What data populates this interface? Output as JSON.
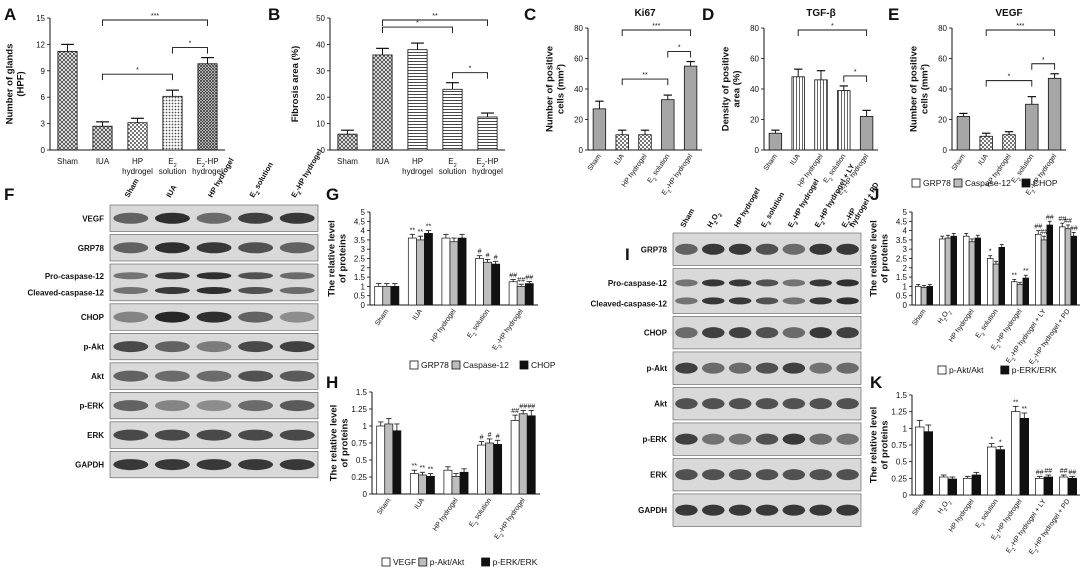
{
  "chart_data": [
    {
      "id": "A",
      "panel": "A",
      "type": "bar",
      "categories": [
        [
          "Sham"
        ],
        [
          "IUA"
        ],
        [
          "HP",
          "hydrogel"
        ],
        [
          "E₂",
          "solution"
        ],
        [
          "E₂-HP",
          "hydrogel"
        ]
      ],
      "values": [
        11.2,
        2.7,
        3.1,
        6.1,
        9.8
      ],
      "errors": [
        0.8,
        0.5,
        0.5,
        0.7,
        0.7
      ],
      "fills": [
        "cross",
        "cross",
        "check",
        "dots",
        "cross2"
      ],
      "ylabel": [
        "Number of glands",
        "(HPF)"
      ],
      "ylim": [
        0,
        15
      ],
      "yticks": [
        0,
        3,
        6,
        9,
        12,
        15
      ],
      "significance": [
        {
          "from": 1,
          "to": 4,
          "label": "***"
        },
        {
          "from": 1,
          "to": 3,
          "label": "*"
        },
        {
          "from": 3,
          "to": 4,
          "label": "*"
        }
      ]
    },
    {
      "id": "B",
      "panel": "B",
      "type": "bar",
      "categories": [
        [
          "Sham"
        ],
        [
          "IUA"
        ],
        [
          "HP",
          "hydrogel"
        ],
        [
          "E₂",
          "solution"
        ],
        [
          "E₂-HP",
          "hydrogel"
        ]
      ],
      "values": [
        6,
        36,
        38,
        23,
        12.5
      ],
      "errors": [
        1.5,
        2.5,
        2.5,
        2.5,
        1.5
      ],
      "fills": [
        "cross",
        "cross",
        "hlines",
        "hlines",
        "hlines"
      ],
      "ylabel": [
        "Fibrosis area (%)"
      ],
      "ylim": [
        0,
        50
      ],
      "yticks": [
        0,
        10,
        20,
        30,
        40,
        50
      ],
      "significance": [
        {
          "from": 1,
          "to": 4,
          "label": "**"
        },
        {
          "from": 1,
          "to": 3,
          "label": "*"
        },
        {
          "from": 3,
          "to": 4,
          "label": "*"
        }
      ]
    },
    {
      "id": "C",
      "panel": "C",
      "type": "bar",
      "title": "Ki67",
      "categories": [
        "Sham",
        "IUA",
        "HP hydrogel",
        "E₂ solution",
        "E₂-HP hydrogel"
      ],
      "values": [
        27,
        10,
        10,
        33,
        55
      ],
      "errors": [
        5,
        3,
        3,
        3,
        3
      ],
      "fills": [
        "solid",
        "check",
        "check",
        "solid",
        "solid"
      ],
      "ylabel": [
        "Number of positive",
        "cells (mm²)"
      ],
      "ylim": [
        0,
        80
      ],
      "yticks": [
        0,
        20,
        40,
        60,
        80
      ],
      "significance": [
        {
          "from": 1,
          "to": 4,
          "label": "***"
        },
        {
          "from": 1,
          "to": 3,
          "label": "**"
        },
        {
          "from": 3,
          "to": 4,
          "label": "*"
        }
      ]
    },
    {
      "id": "D",
      "panel": "D",
      "type": "bar",
      "title": "TGF-β",
      "categories": [
        "Sham",
        "IUA",
        "HP hydrogel",
        "E₂ solution",
        "E₂-HP hydrogel"
      ],
      "values": [
        11,
        48,
        46,
        39,
        22
      ],
      "errors": [
        2,
        5,
        6,
        3,
        4
      ],
      "fills": [
        "solid",
        "vlines",
        "vlines",
        "vlines",
        "solid"
      ],
      "ylabel": [
        "Density of positive",
        "area (%)"
      ],
      "ylim": [
        0,
        80
      ],
      "yticks": [
        0,
        20,
        40,
        60,
        80
      ],
      "significance": [
        {
          "from": 1,
          "to": 4,
          "label": "*"
        },
        {
          "from": 3,
          "to": 4,
          "label": "*"
        }
      ]
    },
    {
      "id": "E",
      "panel": "E",
      "type": "bar",
      "title": "VEGF",
      "categories": [
        "Sham",
        "IUA",
        "HP hydrogel",
        "E₂ solution",
        "E₂-HP hydrogel"
      ],
      "values": [
        22,
        9,
        10,
        30,
        47
      ],
      "errors": [
        2,
        2,
        2,
        5,
        3
      ],
      "fills": [
        "solid",
        "check",
        "check",
        "solid",
        "solid"
      ],
      "ylabel": [
        "Number of positive",
        "cells (mm²)"
      ],
      "ylim": [
        0,
        80
      ],
      "yticks": [
        0,
        20,
        40,
        60,
        80
      ],
      "significance": [
        {
          "from": 1,
          "to": 4,
          "label": "***"
        },
        {
          "from": 1,
          "to": 3,
          "label": "*"
        },
        {
          "from": 3,
          "to": 4,
          "label": "*"
        }
      ]
    },
    {
      "id": "G",
      "panel": "G",
      "type": "bar",
      "grouped": true,
      "categories": [
        "Sham",
        "IUA",
        "HP hydrogel",
        "E₂ solution",
        "E₂-HP hydrogel"
      ],
      "ylabel": [
        "The relative level",
        "of proteins"
      ],
      "ylim": [
        0,
        5
      ],
      "yticks": [
        0,
        0.5,
        1,
        1.5,
        2,
        2.5,
        3,
        3.5,
        4,
        4.5,
        5
      ],
      "series": [
        {
          "name": "GRP78",
          "fill": "#ffffff",
          "values": [
            1.0,
            3.6,
            3.6,
            2.5,
            1.25
          ],
          "errors": [
            0.15,
            0.2,
            0.2,
            0.15,
            0.12
          ],
          "marks": [
            "",
            "**",
            "",
            "#",
            "##"
          ]
        },
        {
          "name": "Caspase-12",
          "fill": "#bdbdbd",
          "values": [
            1.0,
            3.5,
            3.4,
            2.3,
            1.0
          ],
          "errors": [
            0.15,
            0.2,
            0.2,
            0.15,
            0.12
          ],
          "marks": [
            "",
            "**",
            "",
            "#",
            "##"
          ]
        },
        {
          "name": "CHOP",
          "fill": "#111111",
          "values": [
            1.0,
            3.85,
            3.6,
            2.2,
            1.15
          ],
          "errors": [
            0.15,
            0.15,
            0.2,
            0.15,
            0.12
          ],
          "marks": [
            "",
            "**",
            "",
            "#",
            "##"
          ]
        }
      ]
    },
    {
      "id": "H",
      "panel": "H",
      "type": "bar",
      "grouped": true,
      "categories": [
        "Sham",
        "IUA",
        "HP hydrogel",
        "E₂ solution",
        "E₂-HP hydrogel"
      ],
      "ylabel": [
        "The relative level",
        "of proteins"
      ],
      "ylim": [
        0,
        1.5
      ],
      "yticks": [
        0,
        0.25,
        0.5,
        0.75,
        1,
        1.25,
        1.5
      ],
      "series": [
        {
          "name": "VEGF",
          "fill": "#ffffff",
          "values": [
            1.0,
            0.3,
            0.35,
            0.72,
            1.08
          ],
          "errors": [
            0.06,
            0.05,
            0.05,
            0.05,
            0.08
          ],
          "marks": [
            "",
            "**",
            "",
            "#",
            "##"
          ]
        },
        {
          "name": "p-Akt/Akt",
          "fill": "#bdbdbd",
          "values": [
            1.03,
            0.28,
            0.26,
            0.75,
            1.18
          ],
          "errors": [
            0.08,
            0.04,
            0.04,
            0.06,
            0.05
          ],
          "marks": [
            "",
            "**",
            "",
            "#",
            "##"
          ]
        },
        {
          "name": "p-ERK/ERK",
          "fill": "#111111",
          "values": [
            0.93,
            0.26,
            0.32,
            0.73,
            1.15
          ],
          "errors": [
            0.1,
            0.04,
            0.05,
            0.06,
            0.08
          ],
          "marks": [
            "",
            "**",
            "",
            "#",
            "##"
          ]
        }
      ]
    },
    {
      "id": "J",
      "panel": "J",
      "type": "bar",
      "grouped": true,
      "categories": [
        "Sham",
        "H₂O₂",
        "HP hydrogel",
        "E₂ solution",
        "E₂-HP hydrogel",
        "E₂-HP hydrogel + LY",
        "E₂-HP hydrogel + PD"
      ],
      "ylabel": [
        "The relative level",
        "of proteins"
      ],
      "ylim": [
        0,
        5
      ],
      "yticks": [
        0,
        0.5,
        1,
        1.5,
        2,
        2.5,
        3,
        3.5,
        4,
        4.5,
        5
      ],
      "series": [
        {
          "name": "GRP78",
          "fill": "#ffffff",
          "values": [
            1.0,
            3.55,
            3.7,
            2.5,
            1.25,
            3.8,
            4.2
          ],
          "errors": [
            0.1,
            0.15,
            0.15,
            0.15,
            0.12,
            0.2,
            0.2
          ],
          "marks": [
            "",
            "",
            "",
            "*",
            "**",
            "##",
            "##"
          ]
        },
        {
          "name": "Caspase-12",
          "fill": "#bdbdbd",
          "values": [
            0.95,
            3.6,
            3.4,
            2.2,
            1.1,
            3.5,
            4.1
          ],
          "errors": [
            0.1,
            0.15,
            0.15,
            0.15,
            0.12,
            0.2,
            0.2
          ],
          "marks": [
            "",
            "",
            "",
            "",
            "",
            "##",
            "##"
          ]
        },
        {
          "name": "CHOP",
          "fill": "#111111",
          "values": [
            1.0,
            3.7,
            3.6,
            3.1,
            1.45,
            4.3,
            3.7
          ],
          "errors": [
            0.1,
            0.15,
            0.15,
            0.15,
            0.15,
            0.2,
            0.2
          ],
          "marks": [
            "",
            "",
            "",
            "",
            "**",
            "##",
            "##"
          ]
        }
      ]
    },
    {
      "id": "K",
      "panel": "K",
      "type": "bar",
      "grouped": true,
      "categories": [
        "Sham",
        "H₂O₂",
        "HP hydrogel",
        "E₂ solution",
        "E₂-HP hydrogel",
        "E₂-HP hydrogel + LY",
        "E₂-HP hydrogel + PD"
      ],
      "ylabel": [
        "The relative level",
        "of proteins"
      ],
      "ylim": [
        0,
        1.5
      ],
      "yticks": [
        0,
        0.25,
        0.5,
        0.75,
        1,
        1.25,
        1.5
      ],
      "series": [
        {
          "name": "p-Akt/Akt",
          "fill": "#ffffff",
          "values": [
            1.02,
            0.27,
            0.25,
            0.72,
            1.25,
            0.25,
            0.27
          ],
          "errors": [
            0.1,
            0.03,
            0.03,
            0.05,
            0.08,
            0.03,
            0.03
          ],
          "marks": [
            "",
            "",
            "",
            "*",
            "**",
            "##",
            "##"
          ]
        },
        {
          "name": "p-ERK/ERK",
          "fill": "#111111",
          "values": [
            0.95,
            0.24,
            0.3,
            0.68,
            1.15,
            0.27,
            0.25
          ],
          "errors": [
            0.1,
            0.03,
            0.04,
            0.05,
            0.08,
            0.03,
            0.03
          ],
          "marks": [
            "",
            "",
            "",
            "*",
            "**",
            "##",
            "##"
          ]
        }
      ]
    }
  ],
  "blots": [
    {
      "id": "F",
      "panel": "F",
      "lanes": [
        "Sham",
        "IUA",
        "HP hydrogel",
        "E₂ solution",
        "E₂-HP hydrogel"
      ],
      "rows": [
        {
          "label": "VEGF",
          "lines": 1,
          "intensity": [
            0.6,
            0.9,
            0.55,
            0.8,
            0.85
          ]
        },
        {
          "label": "GRP78",
          "lines": 1,
          "intensity": [
            0.6,
            0.9,
            0.85,
            0.7,
            0.6
          ]
        },
        {
          "label": "Pro-caspase-12\nCleaved-caspase-12",
          "lines": 2,
          "intensity": [
            0.5,
            0.85,
            0.9,
            0.7,
            0.55
          ]
        },
        {
          "label": "CHOP",
          "lines": 1,
          "intensity": [
            0.4,
            0.95,
            0.9,
            0.6,
            0.35
          ]
        },
        {
          "label": "p-Akt",
          "lines": 1,
          "intensity": [
            0.75,
            0.6,
            0.45,
            0.75,
            0.8
          ]
        },
        {
          "label": "Akt",
          "lines": 1,
          "intensity": [
            0.6,
            0.55,
            0.55,
            0.7,
            0.65
          ]
        },
        {
          "label": "p-ERK",
          "lines": 1,
          "intensity": [
            0.6,
            0.4,
            0.35,
            0.55,
            0.65
          ]
        },
        {
          "label": "ERK",
          "lines": 1,
          "intensity": [
            0.75,
            0.75,
            0.75,
            0.75,
            0.75
          ]
        },
        {
          "label": "GAPDH",
          "lines": 1,
          "intensity": [
            0.85,
            0.85,
            0.85,
            0.85,
            0.85
          ]
        }
      ]
    },
    {
      "id": "I",
      "panel": "I",
      "lanes": [
        "Sham",
        "H₂O₂",
        "HP hydrogel",
        "E₂ solution",
        "E₂-HP hydrogel",
        "E₂-HP hydrogel + LY",
        "E₂-HP\nhydrogel + PD"
      ],
      "rows": [
        {
          "label": "GRP78",
          "lines": 1,
          "intensity": [
            0.6,
            0.85,
            0.85,
            0.7,
            0.55,
            0.85,
            0.85
          ]
        },
        {
          "label": "Pro-caspase-12\nCleaved-caspase-12",
          "lines": 2,
          "intensity": [
            0.5,
            0.85,
            0.85,
            0.7,
            0.5,
            0.85,
            0.9
          ]
        },
        {
          "label": "CHOP",
          "lines": 1,
          "intensity": [
            0.55,
            0.8,
            0.8,
            0.7,
            0.55,
            0.85,
            0.8
          ]
        },
        {
          "label": "p-Akt",
          "lines": 1,
          "intensity": [
            0.8,
            0.55,
            0.55,
            0.7,
            0.8,
            0.5,
            0.55
          ]
        },
        {
          "label": "Akt",
          "lines": 1,
          "intensity": [
            0.7,
            0.7,
            0.7,
            0.7,
            0.7,
            0.7,
            0.7
          ]
        },
        {
          "label": "p-ERK",
          "lines": 1,
          "intensity": [
            0.8,
            0.5,
            0.5,
            0.7,
            0.85,
            0.55,
            0.5
          ]
        },
        {
          "label": "ERK",
          "lines": 1,
          "intensity": [
            0.7,
            0.7,
            0.7,
            0.7,
            0.7,
            0.7,
            0.7
          ]
        },
        {
          "label": "GAPDH",
          "lines": 1,
          "intensity": [
            0.85,
            0.85,
            0.85,
            0.85,
            0.85,
            0.85,
            0.85
          ]
        }
      ]
    }
  ]
}
